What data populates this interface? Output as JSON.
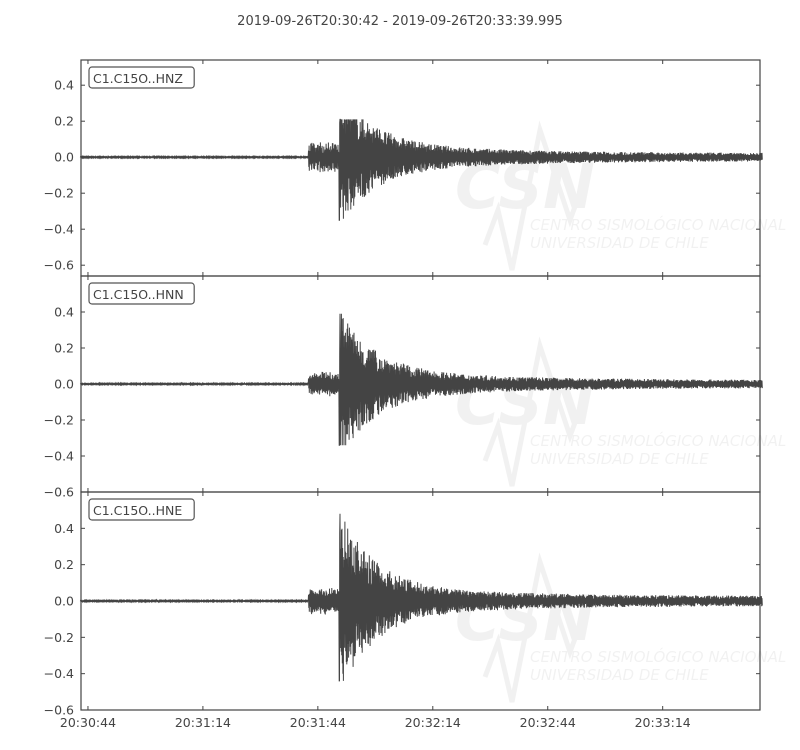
{
  "chart_data": {
    "type": "line",
    "title": "2019-09-26T20:30:42  -  2019-09-26T20:33:39.995",
    "x_start": "20:30:42",
    "x_end": "20:33:39.995",
    "x_tick_labels": [
      "20:30:44",
      "20:31:14",
      "20:31:44",
      "20:32:14",
      "20:32:44",
      "20:33:14"
    ],
    "x_tick_seconds_from_start": [
      2,
      32,
      62,
      92,
      122,
      152
    ],
    "duration_seconds": 178,
    "line_color": "#444444",
    "watermark": "CSN CENTRO SISMOLÓGICO NACIONAL UNIVERSIDAD DE CHILE",
    "series": [
      {
        "name": "C1.C15O..HNZ",
        "ylim": [
          -0.66,
          0.54
        ],
        "y_tick_labels": [
          "0.4",
          "0.2",
          "0.0",
          "−0.2",
          "−0.4",
          "−0.6"
        ],
        "y_ticks": [
          0.4,
          0.2,
          0.0,
          -0.2,
          -0.4,
          -0.6
        ],
        "p_onset_s": 59.5,
        "s_onset_s": 67.5,
        "max": 0.21,
        "min": -0.35,
        "p_amp": 0.09,
        "coda_amp": 0.02
      },
      {
        "name": "C1.C15O..HNN",
        "ylim": [
          -0.6,
          0.6
        ],
        "y_tick_labels": [
          "0.4",
          "0.2",
          "0.0",
          "−0.2",
          "−0.4",
          "−0.6"
        ],
        "y_ticks": [
          0.4,
          0.2,
          0.0,
          -0.2,
          -0.4,
          -0.6
        ],
        "p_onset_s": 59.5,
        "s_onset_s": 67.5,
        "max": 0.39,
        "min": -0.34,
        "p_amp": 0.07,
        "coda_amp": 0.02
      },
      {
        "name": "C1.C15O..HNE",
        "ylim": [
          -0.6,
          0.6
        ],
        "y_tick_labels": [
          "0.4",
          "0.2",
          "0.0",
          "−0.2",
          "−0.4",
          "−0.6"
        ],
        "y_ticks": [
          0.4,
          0.2,
          0.0,
          -0.2,
          -0.4,
          -0.6
        ],
        "p_onset_s": 59.5,
        "s_onset_s": 67.5,
        "max": 0.48,
        "min": -0.44,
        "p_amp": 0.08,
        "coda_amp": 0.025
      }
    ]
  }
}
